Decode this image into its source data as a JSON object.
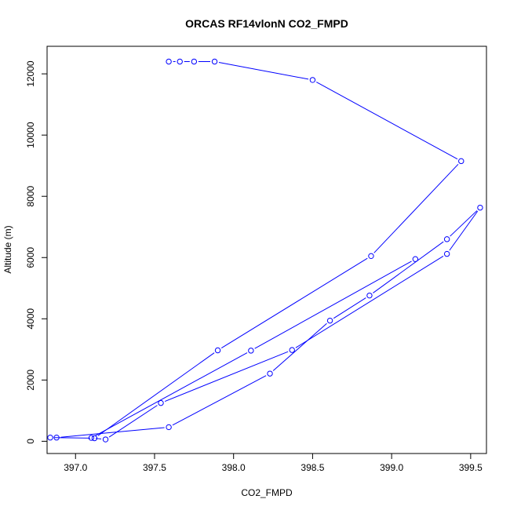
{
  "chart_data": {
    "type": "line",
    "title": "ORCAS RF14vlonN CO2_FMPD",
    "xlabel": "CO2_FMPD",
    "ylabel": "Altitude (m)",
    "xlim": [
      396.82,
      399.6
    ],
    "ylim": [
      -400,
      12900
    ],
    "x_ticks": [
      397.0,
      397.5,
      398.0,
      398.5,
      399.0,
      399.5
    ],
    "x_tick_labels": [
      "397.0",
      "397.5",
      "398.0",
      "398.5",
      "399.0",
      "399.5"
    ],
    "y_ticks": [
      0,
      2000,
      4000,
      6000,
      8000,
      10000,
      12000
    ],
    "y_tick_labels": [
      "0",
      "2000",
      "4000",
      "6000",
      "8000",
      "10000",
      "12000"
    ],
    "series_color": "#0000ff",
    "marker": "open-circle",
    "grid": false,
    "series": [
      {
        "x": [
          397.59,
          397.66,
          397.75,
          397.88,
          398.5,
          399.44,
          398.87,
          397.9,
          397.12,
          396.84,
          396.88,
          397.59,
          398.23,
          398.61,
          398.86,
          399.35,
          399.56,
          399.35,
          398.37,
          397.54,
          397.19,
          397.1,
          398.11,
          399.15
        ],
        "y": [
          12400,
          12400,
          12400,
          12400,
          11800,
          9150,
          6050,
          2970,
          100,
          120,
          120,
          460,
          2210,
          3940,
          4760,
          6600,
          7630,
          6120,
          2980,
          1250,
          60,
          110,
          2960,
          5950
        ]
      }
    ]
  }
}
